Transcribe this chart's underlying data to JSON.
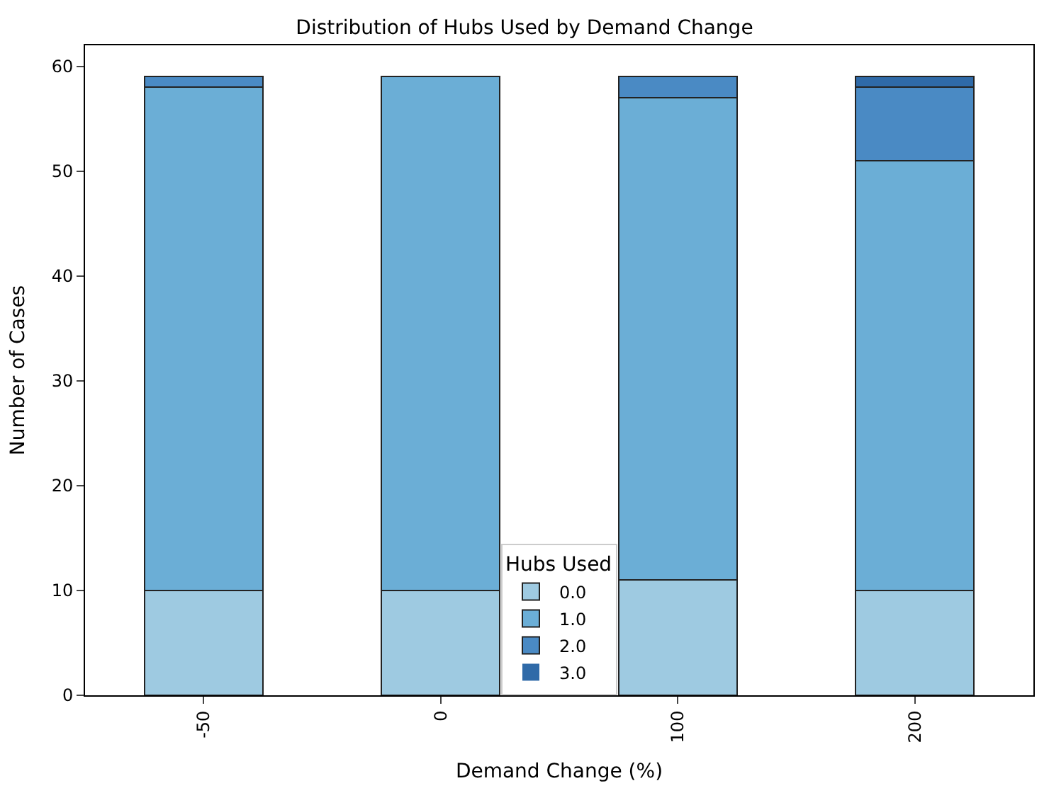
{
  "chart_data": {
    "type": "bar",
    "title": "Distribution of Hubs Used by Demand Change",
    "xlabel": "Demand Change (%)",
    "ylabel": "Number of Cases",
    "legend_title": "Hubs Used",
    "categories": [
      "-50",
      "0",
      "100",
      "200"
    ],
    "stacked": true,
    "series": [
      {
        "name": "0.0",
        "color": "#9ecae1",
        "values": [
          10,
          10,
          11,
          10
        ]
      },
      {
        "name": "1.0",
        "color": "#6baed6",
        "values": [
          48,
          49,
          46,
          41
        ]
      },
      {
        "name": "2.0",
        "color": "#4a8ac4",
        "values": [
          1,
          0,
          2,
          7
        ]
      },
      {
        "name": "3.0",
        "color": "#2f6aa8",
        "values": [
          0,
          0,
          0,
          1
        ]
      }
    ],
    "ylim": [
      0,
      62
    ],
    "yticks": [
      0,
      10,
      20,
      30,
      40,
      50,
      60
    ],
    "grid": false,
    "legend": "bottom"
  }
}
